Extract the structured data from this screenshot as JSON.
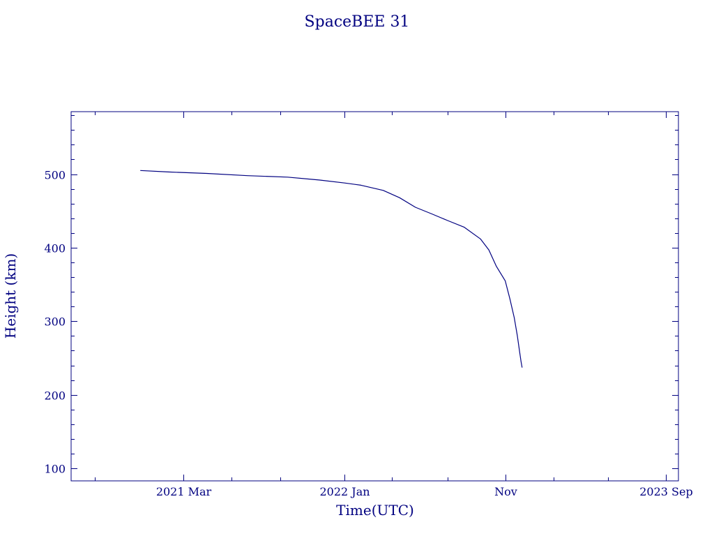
{
  "colors": {
    "ink": "#000080",
    "background": "#ffffff"
  },
  "chart_data": {
    "type": "line",
    "title": "SpaceBEE 31",
    "xlabel": "Time(UTC)",
    "ylabel": "Height (km)",
    "x_unit": "date",
    "xlim": [
      "2020-08-01",
      "2023-09-25"
    ],
    "ylim": [
      83,
      585
    ],
    "x_ticks": [
      {
        "date": "2021-03-01",
        "label": "2021 Mar"
      },
      {
        "date": "2022-01-01",
        "label": "2022 Jan"
      },
      {
        "date": "2022-11-01",
        "label": "Nov"
      },
      {
        "date": "2023-09-01",
        "label": "2023 Sep"
      }
    ],
    "x_minor_ticks": [
      "2020-09-15",
      "2021-06-01",
      "2021-09-01",
      "2022-04-01",
      "2022-07-15",
      "2023-02-01",
      "2023-05-15"
    ],
    "y_ticks": [
      100,
      200,
      300,
      400,
      500
    ],
    "y_minor_step": 20,
    "grid": false,
    "series": [
      {
        "x": [
          "2020-12-10",
          "2021-02-01",
          "2021-04-15",
          "2021-07-01",
          "2021-09-15",
          "2021-11-15",
          "2022-01-01",
          "2022-02-01",
          "2022-03-15",
          "2022-04-15",
          "2022-05-15",
          "2022-06-15",
          "2022-07-15",
          "2022-08-15",
          "2022-09-15",
          "2022-10-01",
          "2022-10-15",
          "2022-11-01",
          "2022-11-10",
          "2022-11-18",
          "2022-11-24",
          "2022-11-28",
          "2022-12-01",
          "2022-12-03"
        ],
        "y": [
          505,
          503,
          501,
          498,
          496,
          492,
          488,
          485,
          478,
          468,
          455,
          446,
          437,
          428,
          412,
          397,
          375,
          355,
          330,
          305,
          280,
          260,
          245,
          237
        ]
      }
    ]
  }
}
